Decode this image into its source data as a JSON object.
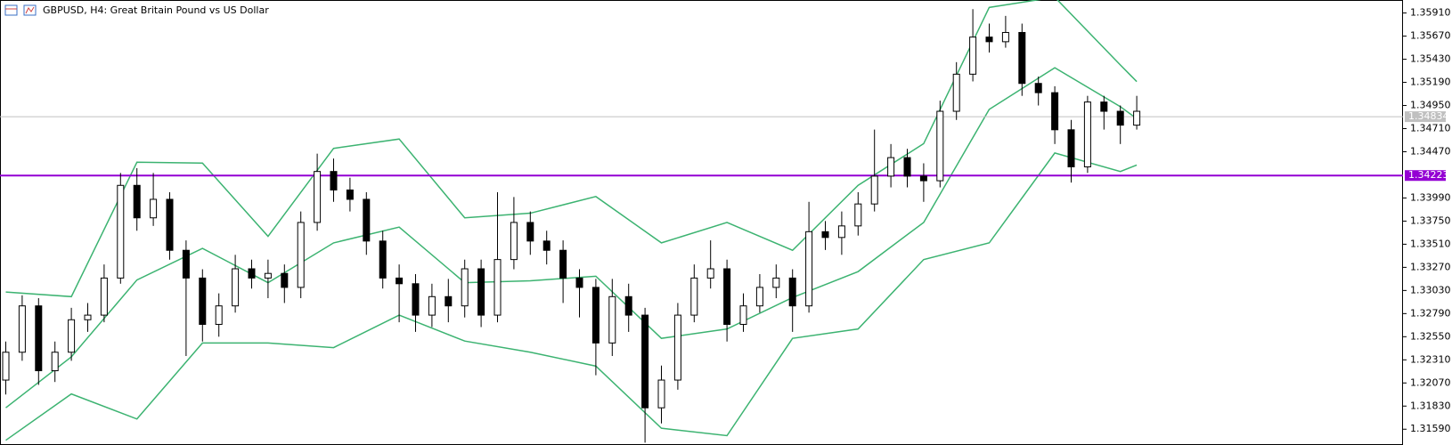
{
  "chart_data": {
    "type": "candlestick",
    "title": "GBPUSD, H4:  Great Britain Pound vs US Dollar",
    "up_color": "#ffffff",
    "down_color": "#000000",
    "open": [
      1.321,
      1.32389,
      1.3287,
      1.32197,
      1.32389,
      1.32726,
      1.32774,
      1.33159,
      1.34121,
      1.33784,
      1.33976,
      1.33447,
      1.33159,
      1.32678,
      1.3287,
      1.33255,
      1.33159,
      1.33207,
      1.33062,
      1.33736,
      1.34265,
      1.34073,
      1.33976,
      1.33543,
      1.33159,
      1.331,
      1.32774,
      1.32966,
      1.3287,
      1.33255,
      1.32774,
      1.33351,
      1.33736,
      1.33543,
      1.33447,
      1.33159,
      1.33062,
      1.32485,
      1.32966,
      1.32774,
      1.31812,
      1.321,
      1.32774,
      1.33159,
      1.33255,
      1.32678,
      1.3287,
      1.33062,
      1.33159,
      1.3287,
      1.3364,
      1.3358,
      1.337,
      1.33928,
      1.34217,
      1.34409,
      1.34217,
      1.34169,
      1.3489,
      1.35275,
      1.3566,
      1.35612,
      1.35708,
      1.35179,
      1.35083,
      1.34698,
      1.34313,
      1.34986,
      1.3489,
      1.34746
    ],
    "high": [
      1.325,
      1.3298,
      1.3295,
      1.325,
      1.3285,
      1.329,
      1.333,
      1.3425,
      1.343,
      1.3425,
      1.3405,
      1.3355,
      1.3325,
      1.33,
      1.334,
      1.3335,
      1.3335,
      1.333,
      1.3385,
      1.3445,
      1.344,
      1.342,
      1.3405,
      1.3365,
      1.333,
      1.332,
      1.331,
      1.3315,
      1.3335,
      1.3335,
      1.3405,
      1.34,
      1.3385,
      1.3365,
      1.3355,
      1.3325,
      1.3315,
      1.3315,
      1.331,
      1.3285,
      1.3225,
      1.329,
      1.333,
      1.3355,
      1.3335,
      1.33,
      1.332,
      1.333,
      1.3325,
      1.3395,
      1.3375,
      1.3385,
      1.3405,
      1.347,
      1.3455,
      1.345,
      1.3435,
      1.35,
      1.354,
      1.3595,
      1.358,
      1.3588,
      1.358,
      1.3525,
      1.3515,
      1.348,
      1.3505,
      1.3505,
      1.3495,
      1.3505
    ],
    "low": [
      1.3195,
      1.323,
      1.3205,
      1.3208,
      1.323,
      1.326,
      1.327,
      1.331,
      1.3365,
      1.337,
      1.3335,
      1.3235,
      1.325,
      1.3255,
      1.328,
      1.3305,
      1.3295,
      1.329,
      1.3295,
      1.3365,
      1.3395,
      1.3385,
      1.334,
      1.3305,
      1.327,
      1.326,
      1.3265,
      1.327,
      1.3275,
      1.3265,
      1.327,
      1.3325,
      1.334,
      1.333,
      1.329,
      1.3275,
      1.3215,
      1.3235,
      1.326,
      1.3145,
      1.3165,
      1.32,
      1.327,
      1.3305,
      1.325,
      1.326,
      1.328,
      1.3295,
      1.326,
      1.328,
      1.3345,
      1.334,
      1.336,
      1.3385,
      1.341,
      1.341,
      1.3395,
      1.341,
      1.348,
      1.352,
      1.355,
      1.3555,
      1.3505,
      1.3495,
      1.3455,
      1.3415,
      1.3425,
      1.347,
      1.3455,
      1.347
    ],
    "close": [
      1.32389,
      1.3287,
      1.32197,
      1.32389,
      1.32726,
      1.32774,
      1.33159,
      1.34121,
      1.33784,
      1.33976,
      1.33447,
      1.33159,
      1.32678,
      1.3287,
      1.33255,
      1.33159,
      1.33207,
      1.33062,
      1.33736,
      1.34265,
      1.34073,
      1.33976,
      1.33543,
      1.33159,
      1.331,
      1.32774,
      1.32966,
      1.3287,
      1.33255,
      1.32774,
      1.33351,
      1.33736,
      1.33543,
      1.33447,
      1.33159,
      1.33062,
      1.32485,
      1.32966,
      1.32774,
      1.31812,
      1.321,
      1.32774,
      1.33159,
      1.33255,
      1.32678,
      1.3287,
      1.33062,
      1.33159,
      1.3287,
      1.3364,
      1.3358,
      1.337,
      1.33928,
      1.34217,
      1.34409,
      1.34217,
      1.34169,
      1.3489,
      1.35275,
      1.3566,
      1.35612,
      1.35708,
      1.35179,
      1.35083,
      1.34698,
      1.34313,
      1.34986,
      1.3489,
      1.34746,
      1.3489
    ],
    "band_x": [
      0,
      4,
      8,
      12,
      16,
      20,
      24,
      28,
      32,
      36,
      40,
      44,
      48,
      52,
      56,
      60,
      64,
      68,
      69
    ],
    "band_color": "#3cb371",
    "bands": [
      {
        "values": [
          1.33014,
          1.32966,
          1.34361,
          1.34352,
          1.33592,
          1.34505,
          1.34602,
          1.33784,
          1.33832,
          1.34005,
          1.33524,
          1.33736,
          1.33447,
          1.34121,
          1.34554,
          1.35968,
          1.36074,
          1.35371,
          1.35198
        ]
      },
      {
        "values": [
          1.31812,
          1.32341,
          1.33139,
          1.33467,
          1.33111,
          1.33524,
          1.33688,
          1.33111,
          1.3313,
          1.33178,
          1.32533,
          1.3263,
          1.32957,
          1.33226,
          1.33736,
          1.3491,
          1.35342,
          1.34938,
          1.34813
        ]
      },
      {
        "values": [
          1.31475,
          1.31956,
          1.31696,
          1.32485,
          1.32485,
          1.32437,
          1.32774,
          1.32505,
          1.32389,
          1.32245,
          1.316,
          1.31523,
          1.32533,
          1.3263,
          1.33351,
          1.33524,
          1.34457,
          1.34265,
          1.34332
        ]
      }
    ],
    "hline": {
      "value": 1.34223,
      "color": "#9400d3"
    },
    "current_price": {
      "value": 1.34834,
      "color": "#c0c0c0"
    },
    "ylim": [
      1.31426,
      1.36045
    ],
    "yticks": [
      {
        "value": 1.3591,
        "label": "1.35910"
      },
      {
        "value": 1.3567,
        "label": "1.35670"
      },
      {
        "value": 1.3543,
        "label": "1.35430"
      },
      {
        "value": 1.3519,
        "label": "1.35190"
      },
      {
        "value": 1.3495,
        "label": "1.34950"
      },
      {
        "value": 1.3471,
        "label": "1.34710"
      },
      {
        "value": 1.3447,
        "label": "1.34470"
      },
      {
        "value": 1.3399,
        "label": "1.33990"
      },
      {
        "value": 1.3375,
        "label": "1.33750"
      },
      {
        "value": 1.3351,
        "label": "1.33510"
      },
      {
        "value": 1.3327,
        "label": "1.33270"
      },
      {
        "value": 1.3303,
        "label": "1.33030"
      },
      {
        "value": 1.3279,
        "label": "1.32790"
      },
      {
        "value": 1.3255,
        "label": "1.32550"
      },
      {
        "value": 1.3231,
        "label": "1.32310"
      },
      {
        "value": 1.3207,
        "label": "1.32070"
      },
      {
        "value": 1.3183,
        "label": "1.31830"
      },
      {
        "value": 1.3159,
        "label": "1.31590"
      }
    ]
  }
}
